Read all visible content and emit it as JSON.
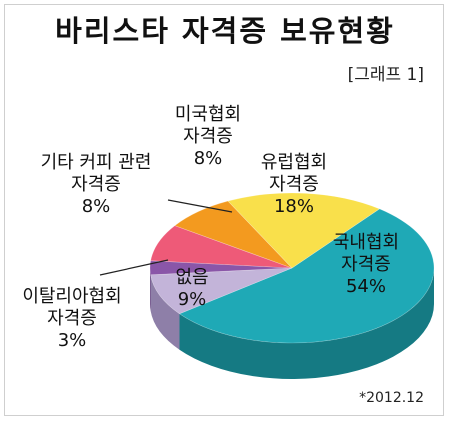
{
  "title": "바리스타 자격증 보유현황",
  "subtitle": "[그래프 1]",
  "footnote": "*2012.12",
  "chart_data": {
    "type": "pie",
    "title": "바리스타 자격증 보유현황",
    "slices": [
      {
        "key": "domestic",
        "lines": [
          "국내협회",
          "자격증",
          "54%"
        ],
        "value": 54,
        "color": "#1fa9b6",
        "side": "#157a83"
      },
      {
        "key": "europe",
        "lines": [
          "유럽협회",
          "자격증",
          "18%"
        ],
        "value": 18,
        "color": "#f9e04b",
        "side": "#c9b02a"
      },
      {
        "key": "usa",
        "lines": [
          "미국협회",
          "자격증",
          "8%"
        ],
        "value": 8,
        "color": "#f39a1f",
        "side": "#c47412"
      },
      {
        "key": "other-coffee",
        "lines": [
          "기타 커피 관련",
          "자격증",
          "8%"
        ],
        "value": 8,
        "color": "#ee5a78",
        "side": "#b83d58"
      },
      {
        "key": "italy",
        "lines": [
          "이탈리아협회",
          "자격증",
          "3%"
        ],
        "value": 3,
        "color": "#8a56a8",
        "side": "#5f3a78"
      },
      {
        "key": "none",
        "lines": [
          "없음",
          "9%"
        ],
        "value": 9,
        "color": "#c3b4d9",
        "side": "#8e7fa8"
      }
    ]
  }
}
